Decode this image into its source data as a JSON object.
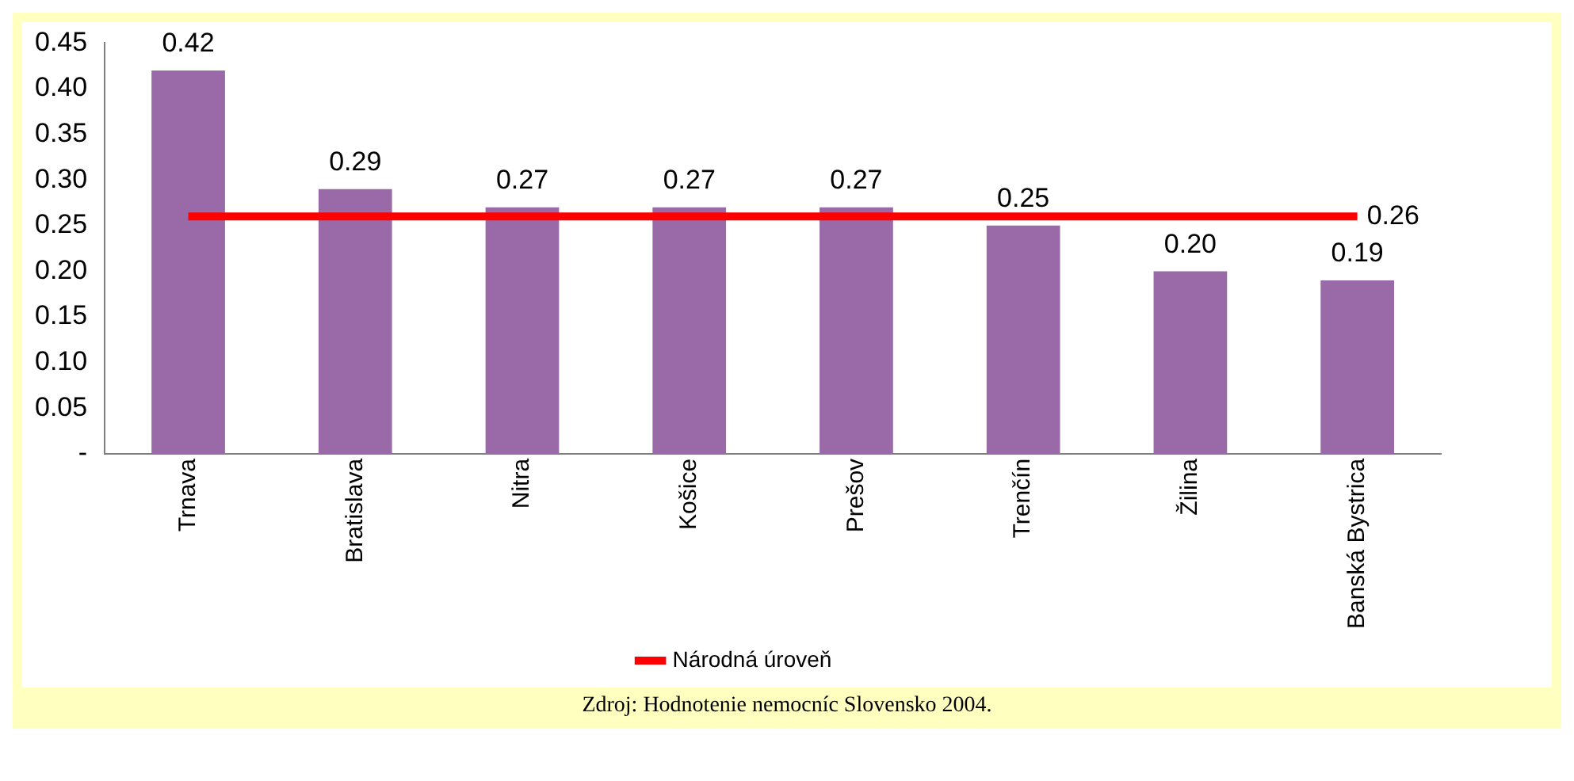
{
  "chart_data": {
    "type": "bar",
    "categories": [
      "Trnava",
      "Bratislava",
      "Nitra",
      "Košice",
      "Prešov",
      "Trenčín",
      "Žilina",
      "Banská Bystrica"
    ],
    "series": [
      {
        "color": "#9a6aa8",
        "values": [
          0.42,
          0.29,
          0.27,
          0.27,
          0.27,
          0.25,
          0.2,
          0.19
        ],
        "value_labels": [
          "0.42",
          "0.29",
          "0.27",
          "0.27",
          "0.27",
          "0.25",
          "0.20",
          "0.19"
        ]
      },
      {
        "type": "line",
        "name": "Národná úroveň",
        "color": "#ff0000",
        "values": [
          0.26,
          0.26,
          0.26,
          0.26,
          0.26,
          0.26,
          0.26,
          0.26
        ],
        "value_labels": [
          null,
          null,
          null,
          null,
          null,
          null,
          null,
          "0.26"
        ]
      }
    ],
    "ylim": [
      0,
      0.45
    ],
    "yticks": [
      {
        "value": 0,
        "label": "-"
      },
      {
        "value": 0.05,
        "label": "0.05"
      },
      {
        "value": 0.1,
        "label": "0.10"
      },
      {
        "value": 0.15,
        "label": "0.15"
      },
      {
        "value": 0.2,
        "label": "0.20"
      },
      {
        "value": 0.25,
        "label": "0.25"
      },
      {
        "value": 0.3,
        "label": "0.30"
      },
      {
        "value": 0.35,
        "label": "0.35"
      },
      {
        "value": 0.4,
        "label": "0.40"
      },
      {
        "value": 0.45,
        "label": "0.45"
      }
    ],
    "grid": false,
    "legend": "bottom",
    "marker": "none",
    "annotations": [
      "Zdroj: Hodnotenie nemocníc Slovensko 2004."
    ]
  }
}
